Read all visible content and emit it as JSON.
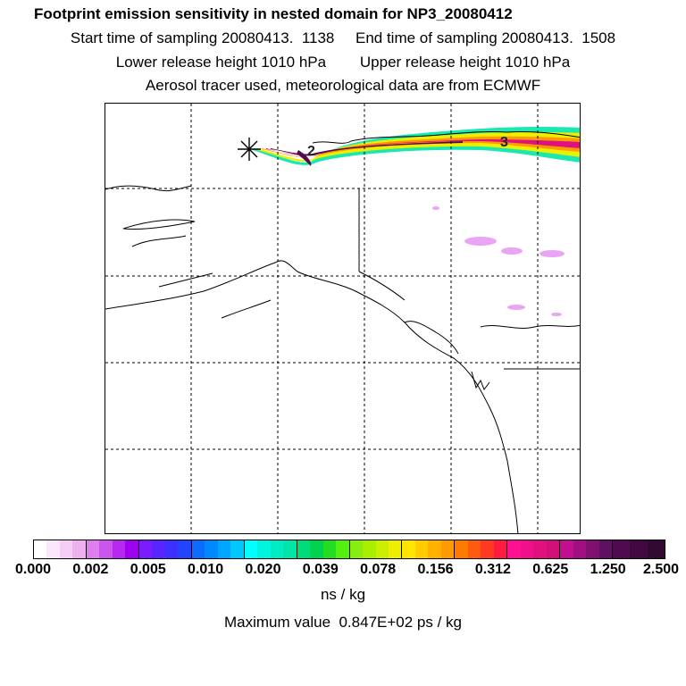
{
  "header": {
    "title": "Footprint emission sensitivity in nested domain for NP3_20080412",
    "line2": "Start time of sampling 20080413.  1138     End time of sampling 20080413.  1508",
    "line3": "Lower release height 1010 hPa        Upper release height 1010 hPa",
    "line4": "Aerosol tracer used, meteorological data are from ECMWF"
  },
  "map": {
    "release_marker": "asterisk-icon",
    "plume_labels": [
      "2",
      "3"
    ],
    "coast_color": "#000000",
    "grid_style": "dashed"
  },
  "colorbar": {
    "tick_labels": [
      "0.000",
      "0.002",
      "0.005",
      "0.010",
      "0.020",
      "0.039",
      "0.078",
      "0.156",
      "0.312",
      "0.625",
      "1.250",
      "2.500"
    ],
    "bands": [
      [
        "#ffffff",
        "#fbe6fb",
        "#f5cdf5",
        "#eeb0ee"
      ],
      [
        "#e07ef0",
        "#cc55ee",
        "#b728ee",
        "#a000f0"
      ],
      [
        "#7a1cff",
        "#5a24ff",
        "#3b30ff",
        "#2244ff"
      ],
      [
        "#0b6cff",
        "#0088ff",
        "#00a6ff",
        "#00c8ff"
      ],
      [
        "#00ffff",
        "#00f4e0",
        "#00ecc4",
        "#00e6a8"
      ],
      [
        "#00dc7c",
        "#00d250",
        "#22dd22",
        "#55ee11"
      ],
      [
        "#88ee11",
        "#aaee00",
        "#ccee00",
        "#eeee00"
      ],
      [
        "#ffe600",
        "#ffcc00",
        "#ffb000",
        "#ff9a00"
      ],
      [
        "#ff7a00",
        "#ff5a10",
        "#ff3a20",
        "#ff1a40"
      ],
      [
        "#ff1090",
        "#f0108a",
        "#e01080",
        "#d01078"
      ],
      [
        "#c01090",
        "#a01080",
        "#801070",
        "#601060"
      ],
      [
        "#500a50",
        "#400a40",
        "#300830"
      ]
    ],
    "units": "ns / kg",
    "max_value_text": "Maximum value  0.847E+02 ps / kg"
  }
}
